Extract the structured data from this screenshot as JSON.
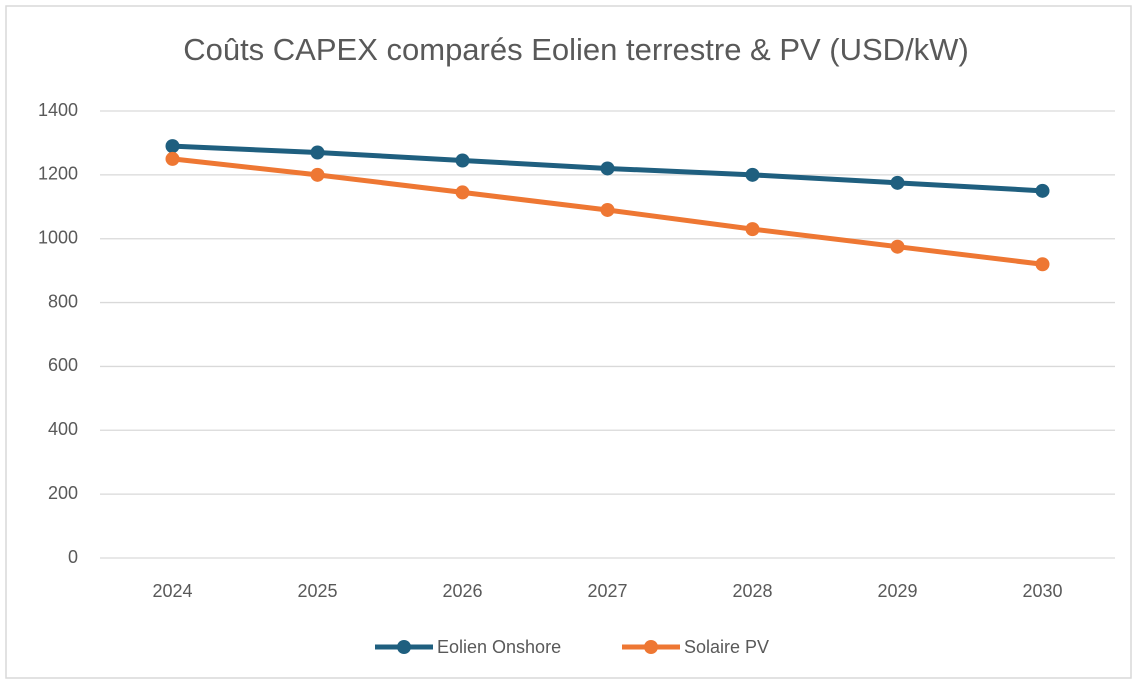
{
  "chart_data": {
    "type": "line",
    "title": "Coûts CAPEX comparés Eolien terrestre & PV (USD/kW)",
    "categories": [
      "2024",
      "2025",
      "2026",
      "2027",
      "2028",
      "2029",
      "2030"
    ],
    "series": [
      {
        "name": "Eolien Onshore",
        "color": "#1f5f7f",
        "values": [
          1290,
          1270,
          1245,
          1220,
          1200,
          1175,
          1150
        ]
      },
      {
        "name": "Solaire PV",
        "color": "#ee7733",
        "values": [
          1250,
          1200,
          1145,
          1090,
          1030,
          975,
          920
        ]
      }
    ],
    "ylim": [
      0,
      1400
    ],
    "yticks": [
      0,
      200,
      400,
      600,
      800,
      1000,
      1200,
      1400
    ],
    "grid": true,
    "legend": "bottom"
  }
}
